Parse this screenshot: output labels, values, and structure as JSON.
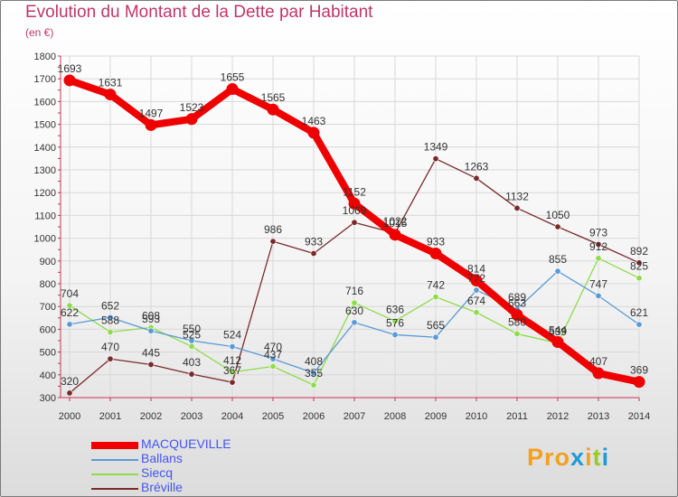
{
  "chart_data": {
    "type": "line",
    "title": "Evolution du Montant de la Dette par Habitant",
    "subtitle": "(en €)",
    "xlabel": "",
    "ylabel": "",
    "ylim": [
      300,
      1800
    ],
    "yticks": [
      300,
      400,
      500,
      600,
      700,
      800,
      900,
      1000,
      1100,
      1200,
      1300,
      1400,
      1500,
      1600,
      1700,
      1800
    ],
    "x": [
      "2000",
      "2001",
      "2002",
      "2003",
      "2004",
      "2005",
      "2006",
      "2007",
      "2008",
      "2009",
      "2010",
      "2011",
      "2012",
      "2013",
      "2014"
    ],
    "grid": true,
    "legend": "bottom-left",
    "series": [
      {
        "name": "MACQUEVILLE",
        "color": "#ee0000",
        "label_color": "#4455ee",
        "values": [
          1693,
          1631,
          1497,
          1523,
          1655,
          1565,
          1463,
          1152,
          1015,
          933,
          814,
          663,
          544,
          407,
          369
        ]
      },
      {
        "name": "Ballans",
        "color": "#5a9ad6",
        "label_color": "#4455ee",
        "values": [
          622,
          652,
          593,
          550,
          524,
          470,
          408,
          630,
          576,
          565,
          772,
          689,
          855,
          747,
          621
        ]
      },
      {
        "name": "Siecq",
        "color": "#8edc4a",
        "label_color": "#4455ee",
        "values": [
          704,
          588,
          608,
          525,
          412,
          437,
          355,
          716,
          636,
          742,
          674,
          580,
          539,
          912,
          825
        ]
      },
      {
        "name": "Bréville",
        "color": "#7a2a2a",
        "label_color": "#4455ee",
        "values": [
          320,
          470,
          445,
          403,
          367,
          986,
          933,
          1069,
          1022,
          1349,
          1263,
          1132,
          1050,
          973,
          892
        ]
      }
    ]
  },
  "logo": {
    "text": "Proxiti",
    "letter_colors": [
      "#f2a020",
      "#f2a020",
      "#f2a020",
      "#1e9bd7",
      "#f2a020",
      "#99cc22",
      "#1e9bd7"
    ]
  }
}
